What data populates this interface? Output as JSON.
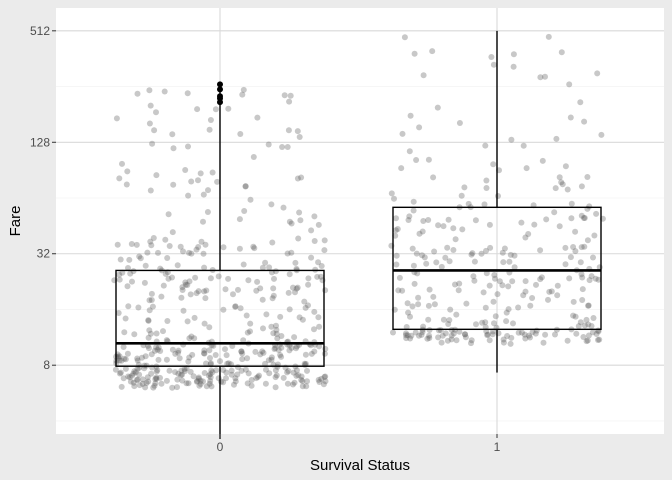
{
  "chart_data": {
    "type": "boxplot",
    "title": "",
    "xlabel": "Survival Status",
    "ylabel": "Fare",
    "y_scale": "log2",
    "ylim": [
      3.4,
      680
    ],
    "yticks": [
      8,
      32,
      128,
      512
    ],
    "ytick_labels": [
      "8",
      "32",
      "128",
      "512"
    ],
    "categories": [
      "0",
      "1"
    ],
    "grid": true,
    "jitter_points": true,
    "boxes": [
      {
        "category": "0",
        "min": 3.2,
        "q1": 7.9,
        "median": 10.5,
        "q3": 26,
        "max": 263,
        "outliers": [
          211,
          221,
          227,
          247,
          263
        ]
      },
      {
        "category": "1",
        "min": 7.3,
        "q1": 12.5,
        "median": 26,
        "q3": 57,
        "max": 512,
        "outliers": []
      }
    ],
    "point_color": "#555555",
    "box_color": "#000000",
    "panel_background": "#ffffff",
    "grid_color": "#d9d9d9",
    "background": "#ebebeb"
  }
}
